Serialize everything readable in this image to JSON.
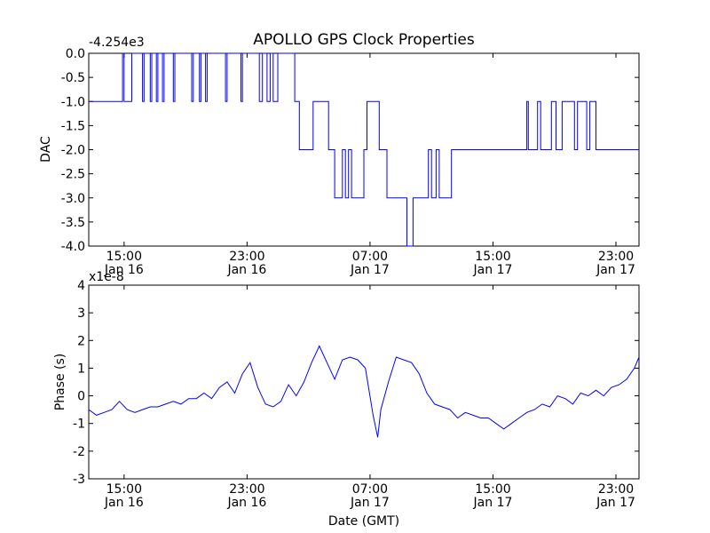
{
  "title": "APOLLO GPS Clock Properties",
  "xlabel": "Date (GMT)",
  "x_ticks": [
    {
      "hour": 15,
      "time": "15:00",
      "date": "Jan 16"
    },
    {
      "hour": 23,
      "time": "23:00",
      "date": "Jan 16"
    },
    {
      "hour": 31,
      "time": "07:00",
      "date": "Jan 17"
    },
    {
      "hour": 39,
      "time": "15:00",
      "date": "Jan 17"
    },
    {
      "hour": 47,
      "time": "23:00",
      "date": "Jan 17"
    }
  ],
  "chart_data": [
    {
      "type": "line",
      "title": "APOLLO GPS Clock Properties",
      "ylabel": "DAC",
      "offset_label": "-4.254e3",
      "xlabel": "",
      "xlim_hours": [
        12.7,
        48.5
      ],
      "ylim": [
        -4.0,
        0.0
      ],
      "y_ticks": [
        "0.0",
        "-0.5",
        "-1.0",
        "-1.5",
        "-2.0",
        "-2.5",
        "-3.0",
        "-3.5",
        "-4.0"
      ],
      "color": "#0000ff",
      "series": [
        {
          "name": "DAC",
          "x_hours": [
            12.7,
            14.9,
            14.9,
            15.0,
            15.0,
            15.5,
            15.5,
            16.2,
            16.2,
            16.3,
            16.3,
            16.7,
            16.7,
            16.8,
            16.8,
            17.1,
            17.1,
            17.2,
            17.2,
            17.5,
            17.5,
            17.6,
            17.6,
            18.2,
            18.2,
            18.3,
            18.3,
            19.4,
            19.4,
            19.5,
            19.5,
            19.9,
            19.9,
            20.0,
            20.0,
            20.3,
            20.3,
            20.4,
            20.4,
            21.6,
            21.6,
            21.7,
            21.7,
            22.6,
            22.6,
            22.7,
            22.7,
            23.8,
            23.8,
            24.0,
            24.0,
            24.3,
            24.3,
            24.5,
            24.5,
            24.7,
            24.7,
            25.0,
            25.0,
            26.1,
            26.1,
            26.4,
            26.4,
            27.3,
            27.3,
            28.3,
            28.3,
            28.7,
            28.7,
            29.2,
            29.2,
            29.4,
            29.4,
            29.6,
            29.6,
            29.8,
            29.8,
            30.6,
            30.6,
            30.8,
            30.8,
            31.6,
            31.6,
            32.1,
            32.1,
            33.4,
            33.4,
            33.8,
            33.8,
            34.8,
            34.8,
            35.0,
            35.0,
            35.3,
            35.3,
            35.5,
            35.5,
            36.3,
            36.3,
            41.2,
            41.2,
            41.3,
            41.3,
            41.9,
            41.9,
            42.1,
            42.1,
            42.8,
            42.8,
            43.1,
            43.1,
            43.5,
            43.5,
            44.3,
            44.3,
            44.5,
            44.5,
            45.1,
            45.1,
            45.3,
            45.3,
            45.7,
            45.7,
            48.5
          ],
          "y": [
            -1.0,
            -1.0,
            0.0,
            0.0,
            -1.0,
            -1.0,
            0.0,
            0.0,
            -1.0,
            -1.0,
            0.0,
            0.0,
            -1.0,
            -1.0,
            0.0,
            0.0,
            -1.0,
            -1.0,
            0.0,
            0.0,
            -1.0,
            -1.0,
            0.0,
            0.0,
            -1.0,
            -1.0,
            0.0,
            0.0,
            -1.0,
            -1.0,
            0.0,
            0.0,
            -1.0,
            -1.0,
            0.0,
            0.0,
            -1.0,
            -1.0,
            0.0,
            0.0,
            -1.0,
            -1.0,
            0.0,
            0.0,
            -1.0,
            -1.0,
            0.0,
            0.0,
            -1.0,
            -1.0,
            0.0,
            0.0,
            -1.0,
            -1.0,
            0.0,
            0.0,
            -1.0,
            -1.0,
            0.0,
            0.0,
            -1.0,
            -1.0,
            -2.0,
            -2.0,
            -1.0,
            -1.0,
            -2.0,
            -2.0,
            -3.0,
            -3.0,
            -2.0,
            -2.0,
            -3.0,
            -3.0,
            -2.0,
            -2.0,
            -3.0,
            -3.0,
            -2.0,
            -2.0,
            -1.0,
            -1.0,
            -2.0,
            -2.0,
            -3.0,
            -3.0,
            -4.0,
            -4.0,
            -3.0,
            -3.0,
            -2.0,
            -2.0,
            -3.0,
            -3.0,
            -2.0,
            -2.0,
            -3.0,
            -3.0,
            -2.0,
            -2.0,
            -1.0,
            -1.0,
            -2.0,
            -2.0,
            -1.0,
            -1.0,
            -2.0,
            -2.0,
            -1.0,
            -1.0,
            -2.0,
            -2.0,
            -1.0,
            -1.0,
            -2.0,
            -2.0,
            -1.0,
            -1.0,
            -2.0,
            -2.0,
            -1.0,
            -1.0,
            -2.0,
            -2.0
          ]
        }
      ]
    },
    {
      "type": "line",
      "title": "",
      "ylabel": "Phase (s)",
      "offset_label": "x1e-8",
      "xlabel": "Date (GMT)",
      "xlim_hours": [
        12.7,
        48.5
      ],
      "ylim": [
        -3,
        4
      ],
      "y_ticks": [
        "4",
        "3",
        "2",
        "1",
        "0",
        "-1",
        "-2",
        "-3"
      ],
      "color": "#0000ff",
      "series": [
        {
          "name": "Phase",
          "x_hours": [
            12.7,
            13.2,
            13.7,
            14.2,
            14.7,
            15.2,
            15.7,
            16.2,
            16.7,
            17.2,
            17.7,
            18.2,
            18.7,
            19.2,
            19.7,
            20.2,
            20.7,
            21.2,
            21.7,
            22.2,
            22.7,
            23.2,
            23.7,
            24.2,
            24.7,
            25.2,
            25.7,
            26.2,
            26.7,
            27.2,
            27.7,
            28.2,
            28.7,
            29.2,
            29.7,
            30.2,
            30.7,
            31.2,
            31.5,
            31.7,
            32.2,
            32.7,
            33.2,
            33.7,
            34.2,
            34.7,
            35.2,
            35.7,
            36.2,
            36.7,
            37.2,
            37.7,
            38.2,
            38.7,
            39.2,
            39.7,
            40.2,
            40.7,
            41.2,
            41.7,
            42.2,
            42.7,
            43.2,
            43.7,
            44.2,
            44.7,
            45.2,
            45.7,
            46.2,
            46.7,
            47.2,
            47.7,
            48.2,
            48.5
          ],
          "y": [
            -0.5,
            -0.7,
            -0.6,
            -0.5,
            -0.2,
            -0.5,
            -0.6,
            -0.5,
            -0.4,
            -0.4,
            -0.3,
            -0.2,
            -0.3,
            -0.1,
            -0.1,
            0.1,
            -0.1,
            0.3,
            0.5,
            0.1,
            0.8,
            1.2,
            0.3,
            -0.3,
            -0.4,
            -0.2,
            0.4,
            0.0,
            0.5,
            1.2,
            1.8,
            1.2,
            0.6,
            1.3,
            1.4,
            1.3,
            1.0,
            -0.7,
            -1.5,
            -0.5,
            0.5,
            1.4,
            1.3,
            1.2,
            0.8,
            0.1,
            -0.3,
            -0.4,
            -0.5,
            -0.8,
            -0.6,
            -0.7,
            -0.8,
            -0.8,
            -1.0,
            -1.2,
            -1.0,
            -0.8,
            -0.6,
            -0.5,
            -0.3,
            -0.4,
            0.0,
            -0.1,
            -0.3,
            0.1,
            0.0,
            0.2,
            0.0,
            0.3,
            0.4,
            0.6,
            1.0,
            1.4
          ]
        }
      ]
    }
  ]
}
